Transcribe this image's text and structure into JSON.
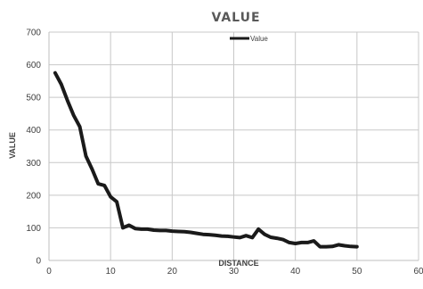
{
  "chart_data": {
    "type": "line",
    "title": "VALUE",
    "xlabel": "DISTANCE",
    "ylabel": "VALUE",
    "xlim": [
      0,
      60
    ],
    "ylim": [
      0,
      700
    ],
    "x_ticks": [
      0,
      10,
      20,
      30,
      40,
      50,
      60
    ],
    "y_ticks": [
      0,
      100,
      200,
      300,
      400,
      500,
      600,
      700
    ],
    "grid": true,
    "legend_position": "top",
    "series": [
      {
        "name": "Value",
        "color": "#1a1a1a",
        "x": [
          1,
          2,
          3,
          4,
          5,
          6,
          7,
          8,
          9,
          10,
          11,
          12,
          13,
          14,
          15,
          16,
          17,
          18,
          19,
          20,
          21,
          22,
          23,
          24,
          25,
          26,
          27,
          28,
          29,
          30,
          31,
          32,
          33,
          34,
          35,
          36,
          37,
          38,
          39,
          40,
          41,
          42,
          43,
          44,
          45,
          46,
          47,
          48,
          49,
          50
        ],
        "y": [
          575,
          540,
          490,
          445,
          410,
          320,
          280,
          235,
          230,
          195,
          180,
          100,
          108,
          98,
          96,
          96,
          93,
          92,
          92,
          90,
          89,
          88,
          86,
          83,
          80,
          79,
          77,
          75,
          74,
          72,
          70,
          76,
          70,
          96,
          80,
          71,
          68,
          64,
          55,
          52,
          55,
          55,
          60,
          42,
          42,
          43,
          48,
          45,
          43,
          42
        ]
      }
    ]
  }
}
